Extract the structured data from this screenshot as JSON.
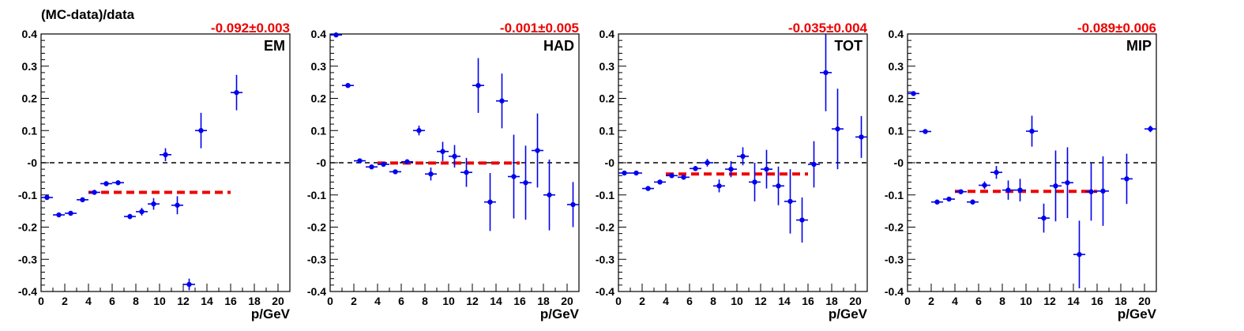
{
  "figure": {
    "ylabel": "(MC-data)/data",
    "colors": {
      "points": "#0000ee",
      "fit": "#ee0000",
      "zero": "#000000",
      "frame": "#000000"
    }
  },
  "chart_data": [
    {
      "type": "scatter",
      "label": "EM",
      "fit_text": "-0.092±0.003",
      "fit": {
        "value": -0.092,
        "x_range": [
          4,
          16
        ]
      },
      "xlabel": "p/GeV",
      "xlim": [
        0,
        21
      ],
      "ylim": [
        -0.4,
        0.4
      ],
      "x_ticks": [
        "0",
        "2",
        "4",
        "6",
        "8",
        "10",
        "12",
        "14",
        "16",
        "18",
        "20"
      ],
      "y_ticks": [
        "-0.4",
        "-0.3",
        "-0.2",
        "-0.1",
        "-0",
        "0.1",
        "0.2",
        "0.3",
        "0.4"
      ],
      "points": [
        {
          "x": 0.5,
          "y": -0.108,
          "err": 0.005
        },
        {
          "x": 1.5,
          "y": -0.162,
          "err": 0.004
        },
        {
          "x": 2.5,
          "y": -0.157,
          "err": 0.004
        },
        {
          "x": 3.5,
          "y": -0.115,
          "err": 0.005
        },
        {
          "x": 4.5,
          "y": -0.092,
          "err": 0.005
        },
        {
          "x": 5.5,
          "y": -0.065,
          "err": 0.006
        },
        {
          "x": 6.5,
          "y": -0.062,
          "err": 0.006
        },
        {
          "x": 7.5,
          "y": -0.167,
          "err": 0.008
        },
        {
          "x": 8.5,
          "y": -0.152,
          "err": 0.012
        },
        {
          "x": 9.5,
          "y": -0.128,
          "err": 0.018
        },
        {
          "x": 10.5,
          "y": 0.025,
          "err": 0.02
        },
        {
          "x": 11.5,
          "y": -0.132,
          "err": 0.028
        },
        {
          "x": 12.5,
          "y": -0.378,
          "err": 0.018
        },
        {
          "x": 13.5,
          "y": 0.1,
          "err": 0.055
        },
        {
          "x": 16.5,
          "y": 0.218,
          "err": 0.055
        }
      ]
    },
    {
      "type": "scatter",
      "label": "HAD",
      "fit_text": "-0.001±0.005",
      "fit": {
        "value": -0.001,
        "x_range": [
          4,
          16
        ]
      },
      "xlabel": "p/GeV",
      "xlim": [
        0,
        21
      ],
      "ylim": [
        -0.4,
        0.4
      ],
      "x_ticks": [
        "0",
        "2",
        "4",
        "6",
        "8",
        "10",
        "12",
        "14",
        "16",
        "18",
        "20"
      ],
      "y_ticks": [
        "-0.4",
        "-0.3",
        "-0.2",
        "-0.1",
        "-0",
        "0.1",
        "0.2",
        "0.3",
        "0.4"
      ],
      "points": [
        {
          "x": 0.5,
          "y": 0.397,
          "err": 0.003
        },
        {
          "x": 1.5,
          "y": 0.24,
          "err": 0.003
        },
        {
          "x": 2.5,
          "y": 0.006,
          "err": 0.004
        },
        {
          "x": 3.5,
          "y": -0.013,
          "err": 0.004
        },
        {
          "x": 4.5,
          "y": -0.005,
          "err": 0.005
        },
        {
          "x": 5.5,
          "y": -0.028,
          "err": 0.006
        },
        {
          "x": 6.5,
          "y": 0.003,
          "err": 0.008
        },
        {
          "x": 7.5,
          "y": 0.1,
          "err": 0.015
        },
        {
          "x": 8.5,
          "y": -0.035,
          "err": 0.02
        },
        {
          "x": 9.5,
          "y": 0.035,
          "err": 0.03
        },
        {
          "x": 10.5,
          "y": 0.02,
          "err": 0.035
        },
        {
          "x": 11.5,
          "y": -0.03,
          "err": 0.045
        },
        {
          "x": 12.5,
          "y": 0.24,
          "err": 0.085
        },
        {
          "x": 13.5,
          "y": -0.122,
          "err": 0.09
        },
        {
          "x": 14.5,
          "y": 0.192,
          "err": 0.085
        },
        {
          "x": 15.5,
          "y": -0.043,
          "err": 0.13
        },
        {
          "x": 16.5,
          "y": -0.062,
          "err": 0.115
        },
        {
          "x": 17.5,
          "y": 0.038,
          "err": 0.115
        },
        {
          "x": 18.5,
          "y": -0.1,
          "err": 0.11
        },
        {
          "x": 20.5,
          "y": -0.13,
          "err": 0.07
        }
      ]
    },
    {
      "type": "scatter",
      "label": "TOT",
      "fit_text": "-0.035±0.004",
      "fit": {
        "value": -0.035,
        "x_range": [
          4,
          16
        ]
      },
      "xlabel": "p/GeV",
      "xlim": [
        0,
        21
      ],
      "ylim": [
        -0.4,
        0.4
      ],
      "x_ticks": [
        "0",
        "2",
        "4",
        "6",
        "8",
        "10",
        "12",
        "14",
        "16",
        "18",
        "20"
      ],
      "y_ticks": [
        "-0.4",
        "-0.3",
        "-0.2",
        "-0.1",
        "-0",
        "0.1",
        "0.2",
        "0.3",
        "0.4"
      ],
      "points": [
        {
          "x": 0.5,
          "y": -0.032,
          "err": 0.004
        },
        {
          "x": 1.5,
          "y": -0.032,
          "err": 0.004
        },
        {
          "x": 2.5,
          "y": -0.08,
          "err": 0.004
        },
        {
          "x": 3.5,
          "y": -0.06,
          "err": 0.004
        },
        {
          "x": 4.5,
          "y": -0.04,
          "err": 0.005
        },
        {
          "x": 5.5,
          "y": -0.045,
          "err": 0.006
        },
        {
          "x": 6.5,
          "y": -0.018,
          "err": 0.008
        },
        {
          "x": 7.5,
          "y": 0.0,
          "err": 0.012
        },
        {
          "x": 8.5,
          "y": -0.072,
          "err": 0.02
        },
        {
          "x": 9.5,
          "y": -0.02,
          "err": 0.025
        },
        {
          "x": 10.5,
          "y": 0.02,
          "err": 0.028
        },
        {
          "x": 11.5,
          "y": -0.06,
          "err": 0.06
        },
        {
          "x": 12.5,
          "y": -0.02,
          "err": 0.06
        },
        {
          "x": 13.5,
          "y": -0.072,
          "err": 0.06
        },
        {
          "x": 14.5,
          "y": -0.12,
          "err": 0.1
        },
        {
          "x": 15.5,
          "y": -0.178,
          "err": 0.07
        },
        {
          "x": 16.5,
          "y": -0.005,
          "err": 0.072
        },
        {
          "x": 17.5,
          "y": 0.28,
          "err": 0.12
        },
        {
          "x": 18.5,
          "y": 0.105,
          "err": 0.125
        },
        {
          "x": 20.5,
          "y": 0.08,
          "err": 0.065
        }
      ]
    },
    {
      "type": "scatter",
      "label": "MIP",
      "fit_text": "-0.089±0.006",
      "fit": {
        "value": -0.089,
        "x_range": [
          4,
          16
        ]
      },
      "xlabel": "p/GeV",
      "xlim": [
        0,
        21
      ],
      "ylim": [
        -0.4,
        0.4
      ],
      "x_ticks": [
        "0",
        "2",
        "4",
        "6",
        "8",
        "10",
        "12",
        "14",
        "16",
        "18",
        "20"
      ],
      "y_ticks": [
        "-0.4",
        "-0.3",
        "-0.2",
        "-0.1",
        "-0",
        "0.1",
        "0.2",
        "0.3",
        "0.4"
      ],
      "points": [
        {
          "x": 0.5,
          "y": 0.215,
          "err": 0.005
        },
        {
          "x": 1.5,
          "y": 0.097,
          "err": 0.004
        },
        {
          "x": 2.5,
          "y": -0.122,
          "err": 0.004
        },
        {
          "x": 3.5,
          "y": -0.113,
          "err": 0.004
        },
        {
          "x": 4.5,
          "y": -0.09,
          "err": 0.006
        },
        {
          "x": 5.5,
          "y": -0.122,
          "err": 0.008
        },
        {
          "x": 6.5,
          "y": -0.07,
          "err": 0.012
        },
        {
          "x": 7.5,
          "y": -0.03,
          "err": 0.02
        },
        {
          "x": 8.5,
          "y": -0.085,
          "err": 0.03
        },
        {
          "x": 9.5,
          "y": -0.085,
          "err": 0.035
        },
        {
          "x": 10.5,
          "y": 0.098,
          "err": 0.048
        },
        {
          "x": 11.5,
          "y": -0.172,
          "err": 0.045
        },
        {
          "x": 12.5,
          "y": -0.072,
          "err": 0.11
        },
        {
          "x": 13.5,
          "y": -0.062,
          "err": 0.11
        },
        {
          "x": 14.5,
          "y": -0.285,
          "err": 0.105
        },
        {
          "x": 15.5,
          "y": -0.09,
          "err": 0.09
        },
        {
          "x": 16.5,
          "y": -0.088,
          "err": 0.108
        },
        {
          "x": 18.5,
          "y": -0.05,
          "err": 0.078
        },
        {
          "x": 20.5,
          "y": 0.105,
          "err": 0.01
        }
      ]
    }
  ]
}
